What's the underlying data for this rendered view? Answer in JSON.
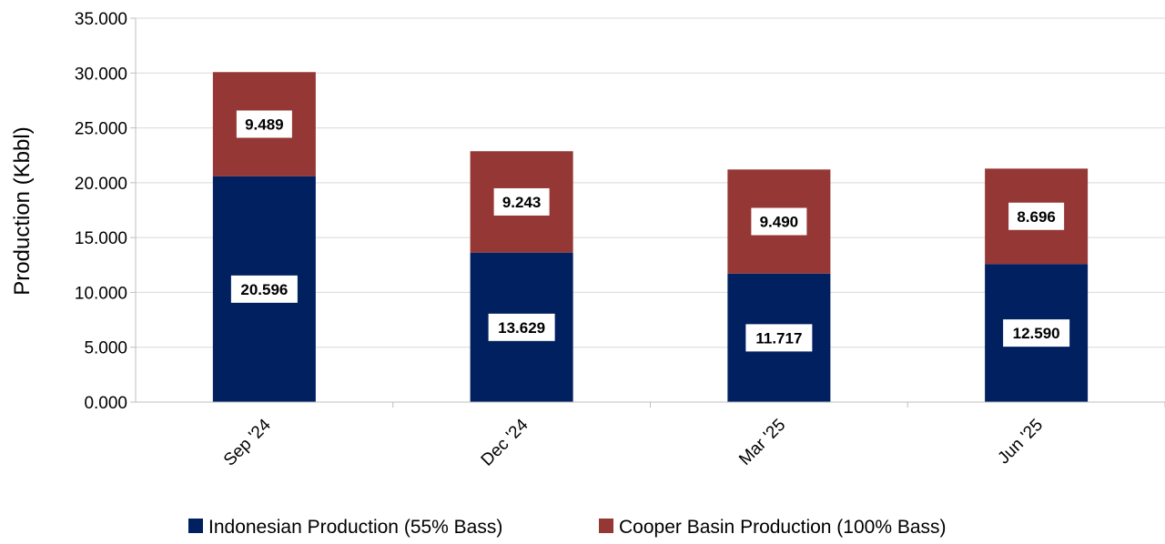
{
  "chart_data": {
    "type": "bar",
    "stacked": true,
    "categories": [
      "Sep '24",
      "Dec '24",
      "Mar '25",
      "Jun '25"
    ],
    "series": [
      {
        "name": "Indonesian Production (55% Bass)",
        "values": [
          20.596,
          13.629,
          11.717,
          12.59
        ],
        "labels": [
          "20.596",
          "13.629",
          "11.717",
          "12.590"
        ],
        "color": "#002060"
      },
      {
        "name": "Cooper Basin Production (100% Bass)",
        "values": [
          9.489,
          9.243,
          9.49,
          8.696
        ],
        "labels": [
          "9.489",
          "9.243",
          "9.490",
          "8.696"
        ],
        "color": "#953735"
      }
    ],
    "ylabel": "Production (Kbbl)",
    "xlabel": "",
    "ylim": [
      0,
      35
    ],
    "y_ticks": [
      "0.000",
      "5.000",
      "10.000",
      "15.000",
      "20.000",
      "25.000",
      "30.000",
      "35.000"
    ],
    "grid": "horizontal",
    "legend_position": "bottom-center",
    "grid_color": "#d9d9d9"
  }
}
